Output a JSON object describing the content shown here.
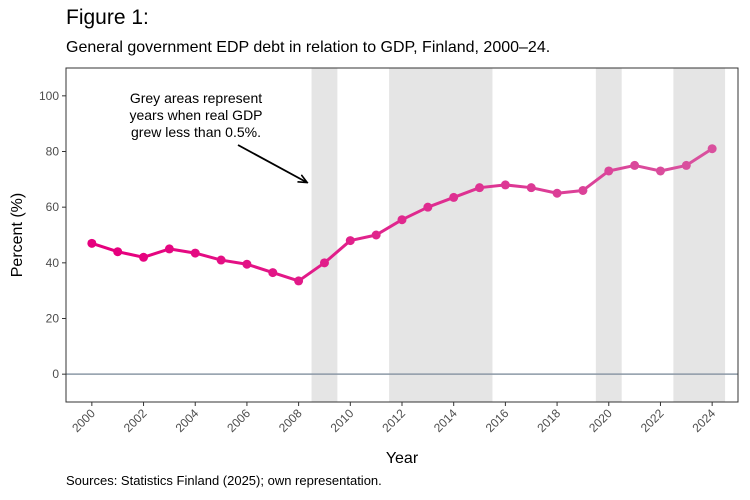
{
  "figure_label": "Figure 1:",
  "source": "Sources: Statistics Finland (2025); own representation.",
  "chart_data": {
    "type": "line",
    "title": "General government EDP debt in relation to GDP, Finland, 2000–24.",
    "xlabel": "Year",
    "ylabel": "Percent (%)",
    "xlim": [
      1999,
      2025
    ],
    "ylim": [
      -10,
      110
    ],
    "x_ticks": [
      2000,
      2002,
      2004,
      2006,
      2008,
      2010,
      2012,
      2014,
      2016,
      2018,
      2020,
      2022,
      2024
    ],
    "y_ticks": [
      0,
      20,
      40,
      60,
      80,
      100
    ],
    "reference_line_y": 0,
    "grid": false,
    "legend": "none",
    "x": [
      2000,
      2001,
      2002,
      2003,
      2004,
      2005,
      2006,
      2007,
      2008,
      2009,
      2010,
      2011,
      2012,
      2013,
      2014,
      2015,
      2016,
      2017,
      2018,
      2019,
      2020,
      2021,
      2022,
      2023,
      2024
    ],
    "values": [
      47.0,
      44.0,
      42.0,
      45.0,
      43.5,
      41.0,
      39.5,
      36.5,
      33.5,
      40.0,
      48.0,
      50.0,
      55.5,
      60.0,
      63.5,
      67.0,
      68.0,
      67.0,
      65.0,
      66.0,
      73.0,
      75.0,
      73.0,
      75.0,
      81.0
    ],
    "shaded_ranges": [
      [
        2008.5,
        2009.5
      ],
      [
        2011.5,
        2015.5
      ],
      [
        2019.5,
        2020.5
      ],
      [
        2022.5,
        2024.5
      ]
    ],
    "annotation": {
      "lines": [
        "Grey areas represent",
        "years when real GDP",
        "grew less than 0.5%."
      ],
      "arrow_to": [
        2008.3,
        69
      ]
    },
    "colors": {
      "line_start": "#e6007e",
      "line_end": "#d9509e",
      "shade": "#e5e5e5",
      "zero_line": "#8c99a6",
      "axis": "#333333"
    }
  }
}
